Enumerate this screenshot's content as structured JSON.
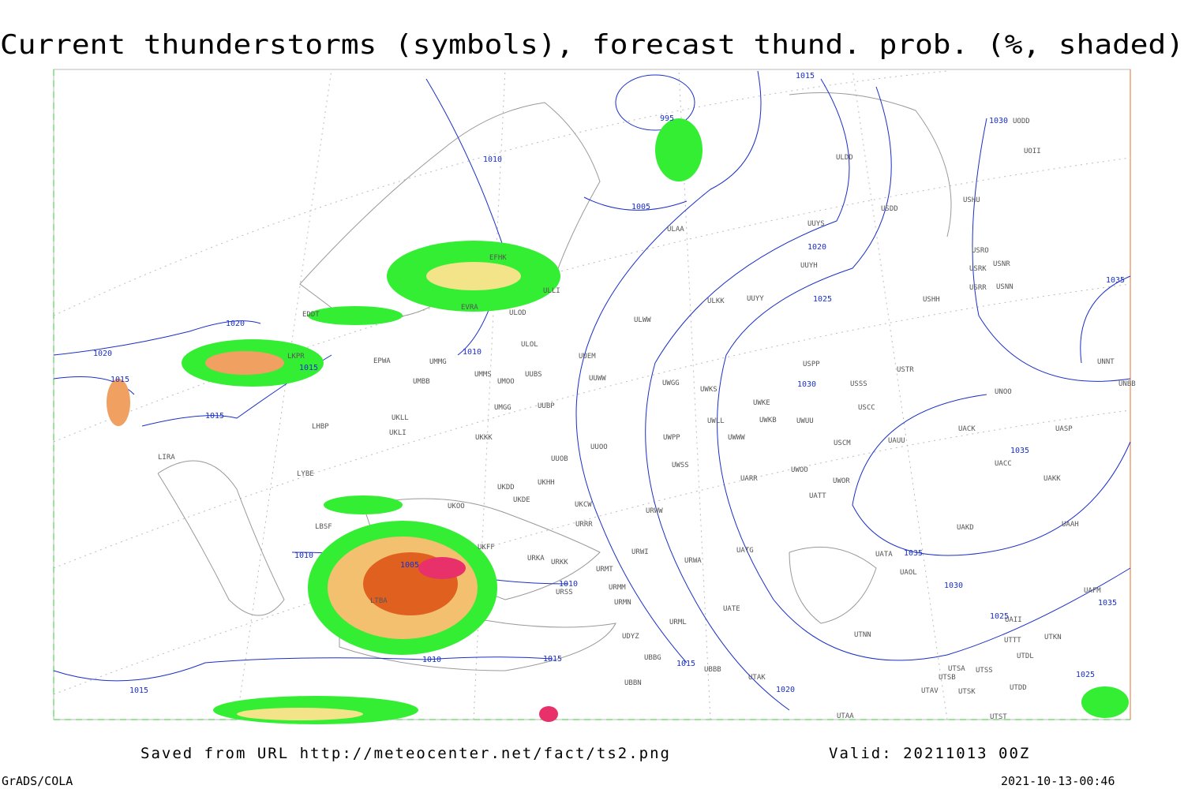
{
  "header": {
    "title": "Current thunderstorms (symbols), forecast thund. prob. (%, shaded)"
  },
  "isobar_labels": [
    "995",
    "1005",
    "1010",
    "1010",
    "1015",
    "1020",
    "1020",
    "1015",
    "1015",
    "1015",
    "1020",
    "1025",
    "1030",
    "1030",
    "1035",
    "1035",
    "1035",
    "1030",
    "1025",
    "1035",
    "1025",
    "1010",
    "1005",
    "1010",
    "1010",
    "1015",
    "1015",
    "1015",
    "1020"
  ],
  "stations": [
    "UODD",
    "UOII",
    "ULDD",
    "USDD",
    "USHU",
    "UUYS",
    "ULAA",
    "USRO",
    "USNR",
    "USRK",
    "USRR",
    "USNN",
    "UUYH",
    "USHH",
    "ULKK",
    "UUYY",
    "EFHK",
    "ULLI",
    "EVRA",
    "ULOD",
    "EDDT",
    "ULWW",
    "ULOL",
    "UUEM",
    "EPWA",
    "UMMG",
    "LKPR",
    "USPP",
    "USTR",
    "UNNT",
    "UMMS",
    "UUBS",
    "UMOO",
    "UUWW",
    "UMBB",
    "UWGG",
    "USSS",
    "UWKS",
    "UNOO",
    "UNBB",
    "UWKE",
    "USCC",
    "UMGG",
    "UUBP",
    "UWKB",
    "UWUU",
    "UACK",
    "UASP",
    "LHBP",
    "UKLL",
    "UKLI",
    "UWLL",
    "UWWW",
    "UKKK",
    "UWPP",
    "USCM",
    "UAUU",
    "UUOO",
    "LIRA",
    "UUOB",
    "UWSS",
    "UACC",
    "UAKK",
    "LYBE",
    "UKHH",
    "UKDD",
    "UKDE",
    "UARR",
    "UWOO",
    "UWOR",
    "UATT",
    "UKOO",
    "UKCW",
    "URWW",
    "LBSF",
    "URRR",
    "UAKD",
    "UAAH",
    "UKFF",
    "URKA",
    "URKK",
    "URMT",
    "URWI",
    "UATG",
    "URWA",
    "UATA",
    "UAOL",
    "URSS",
    "URMM",
    "URMN",
    "UATE",
    "LTBA",
    "URML",
    "UDYZ",
    "UBBG",
    "UTNN",
    "UTTT",
    "UTKN",
    "UTDL",
    "UBBB",
    "UTAK",
    "UBBN",
    "UTSA",
    "UTSB",
    "UTSS",
    "UTAV",
    "UTSK",
    "UTDD",
    "UTAA",
    "UTST",
    "UAII",
    "UAFM"
  ],
  "footer": {
    "source": "Saved from URL http://meteocenter.net/fact/ts2.png",
    "valid": "Valid: 20211013 00Z",
    "software": "GrADS/COLA",
    "timestamp": "2021-10-13-00:46"
  }
}
